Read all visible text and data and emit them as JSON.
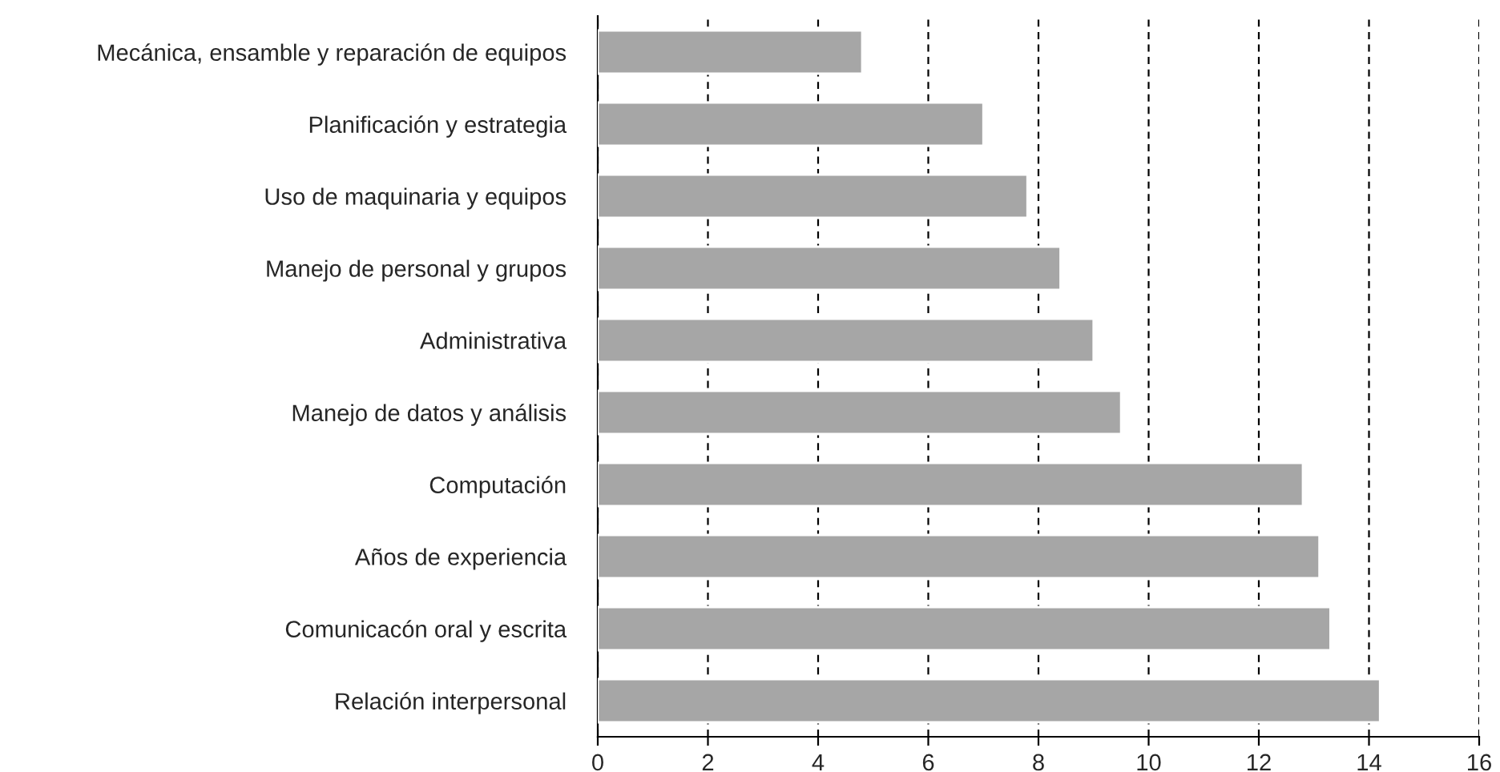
{
  "chart_data": {
    "type": "bar",
    "orientation": "horizontal",
    "categories": [
      "Mecánica, ensamble y reparación de equipos",
      "Planificación y estrategia",
      "Uso de maquinaria y equipos",
      "Manejo de personal y grupos",
      "Administrativa",
      "Manejo de datos y análisis",
      "Computación",
      "Años de experiencia",
      "Comunicacón oral y escrita",
      "Relación interpersonal"
    ],
    "values": [
      4.8,
      7.0,
      7.8,
      8.4,
      9.0,
      9.5,
      12.8,
      13.1,
      13.3,
      14.2
    ],
    "color": "#a6a6a6",
    "xlim": [
      0,
      16
    ],
    "xticks": [
      0,
      2,
      4,
      6,
      8,
      10,
      12,
      14,
      16
    ],
    "grid": "x",
    "legend": false
  }
}
